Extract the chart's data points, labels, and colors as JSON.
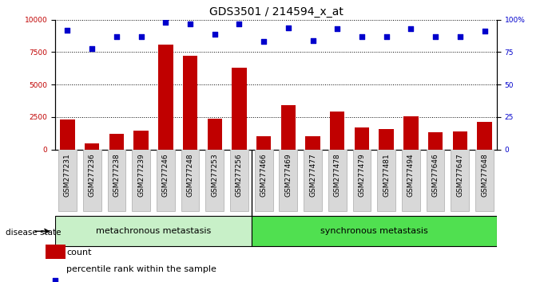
{
  "title": "GDS3501 / 214594_x_at",
  "samples": [
    "GSM277231",
    "GSM277236",
    "GSM277238",
    "GSM277239",
    "GSM277246",
    "GSM277248",
    "GSM277253",
    "GSM277256",
    "GSM277466",
    "GSM277469",
    "GSM277477",
    "GSM277478",
    "GSM277479",
    "GSM277481",
    "GSM277494",
    "GSM277646",
    "GSM277647",
    "GSM277648"
  ],
  "counts": [
    2300,
    450,
    1200,
    1450,
    8100,
    7200,
    2400,
    6300,
    1000,
    3400,
    1050,
    2950,
    1700,
    1550,
    2550,
    1300,
    1400,
    2100
  ],
  "percentiles": [
    92,
    78,
    87,
    87,
    98,
    97,
    89,
    97,
    83,
    94,
    84,
    93,
    87,
    87,
    93,
    87,
    87,
    91
  ],
  "groups": [
    {
      "label": "metachronous metastasis",
      "start": 0,
      "end": 8,
      "color": "#c8f0c8"
    },
    {
      "label": "synchronous metastasis",
      "start": 8,
      "end": 18,
      "color": "#50e050"
    }
  ],
  "bar_color": "#c00000",
  "dot_color": "#0000cc",
  "ylim_left": [
    0,
    10000
  ],
  "yticks_left": [
    0,
    2500,
    5000,
    7500,
    10000
  ],
  "yticks_right": [
    0,
    25,
    50,
    75,
    100
  ],
  "grid_lines": [
    2500,
    5000,
    7500,
    10000
  ],
  "background_color": "#ffffff",
  "disease_state_label": "disease state",
  "legend_count": "count",
  "legend_percentile": "percentile rank within the sample",
  "title_fontsize": 10,
  "tick_fontsize": 6.5,
  "group_fontsize": 8,
  "legend_fontsize": 8
}
